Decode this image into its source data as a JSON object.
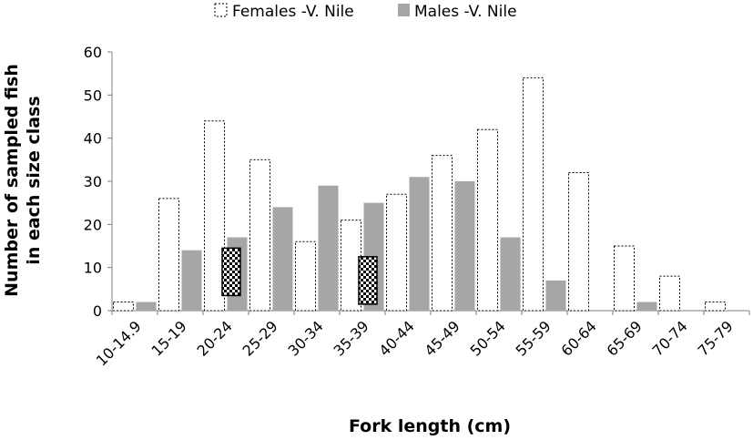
{
  "chart_data": {
    "type": "bar",
    "categories": [
      "10-14.9",
      "15-19",
      "20-24",
      "25-29",
      "30-34",
      "35-39",
      "40-44",
      "45-49",
      "50-54",
      "55-59",
      "60-64",
      "65-69",
      "70-74",
      "75-79"
    ],
    "series": [
      {
        "name": "Females -V. Nile",
        "values": [
          2,
          26,
          44,
          35,
          16,
          21,
          27,
          36,
          42,
          54,
          32,
          15,
          8,
          2
        ],
        "fill": "#ffffff",
        "stroke": "#000000",
        "stroke_style": "dotted"
      },
      {
        "name": "Males -V. Nile",
        "values": [
          2,
          14,
          17,
          24,
          29,
          25,
          31,
          30,
          17,
          7,
          0,
          2,
          0,
          0
        ],
        "fill": "#a6a6a6",
        "stroke": "none",
        "stroke_style": "solid"
      }
    ],
    "annotations": [
      {
        "pattern": "checkerboard",
        "category": "20-24",
        "y_range": [
          3.5,
          14.5
        ]
      },
      {
        "pattern": "checkerboard",
        "category": "35-39",
        "y_range": [
          1.5,
          12.5
        ]
      }
    ],
    "title": "",
    "xlabel": "Fork length (cm)",
    "ylabel_lines": [
      "Number of sampled fish",
      "in each size class"
    ],
    "ylim": [
      0,
      60
    ],
    "yticks": [
      0,
      10,
      20,
      30,
      40,
      50,
      60
    ],
    "grid": false,
    "legend_position": "top-center"
  }
}
